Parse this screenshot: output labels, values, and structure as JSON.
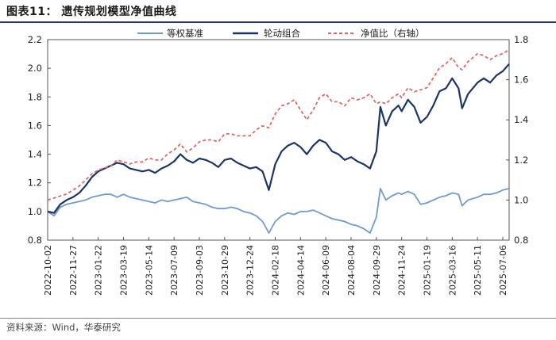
{
  "title": "图表11：   遗传规划模型净值曲线",
  "source": "资料来源：Wind，华泰研究",
  "chart_data": {
    "type": "line",
    "y_left_ticks": [
      "2.2",
      "2.0",
      "1.8",
      "1.6",
      "1.4",
      "1.2",
      "1.0",
      "0.8"
    ],
    "y_right_ticks": [
      "1.8",
      "1.6",
      "1.4",
      "1.2",
      "1.0",
      "0.8"
    ],
    "ylim_left": [
      0.8,
      2.2
    ],
    "ylim_right": [
      0.8,
      1.8
    ],
    "x_ticks": [
      "2022-10-02",
      "2022-11-27",
      "2023-01-22",
      "2023-03-19",
      "2023-05-14",
      "2023-07-09",
      "2023-09-03",
      "2023-10-29",
      "2023-12-24",
      "2024-02-18",
      "2024-04-14",
      "2024-06-09",
      "2024-08-04",
      "2024-09-29",
      "2024-11-24",
      "2025-01-19",
      "2025-03-16",
      "2025-05-11",
      "2025-07-06"
    ],
    "series": [
      {
        "name": "等权基准",
        "axis": "left",
        "color": "#6f9bd1",
        "style": "solid",
        "points": [
          [
            "2022-10-02",
            1.0
          ],
          [
            "2022-10-16",
            0.97
          ],
          [
            "2022-10-30",
            1.03
          ],
          [
            "2022-11-13",
            1.05
          ],
          [
            "2022-11-27",
            1.06
          ],
          [
            "2022-12-11",
            1.07
          ],
          [
            "2022-12-25",
            1.08
          ],
          [
            "2023-01-08",
            1.1
          ],
          [
            "2023-01-22",
            1.11
          ],
          [
            "2023-02-05",
            1.12
          ],
          [
            "2023-02-19",
            1.12
          ],
          [
            "2023-03-05",
            1.1
          ],
          [
            "2023-03-19",
            1.12
          ],
          [
            "2023-04-02",
            1.1
          ],
          [
            "2023-04-16",
            1.09
          ],
          [
            "2023-04-30",
            1.08
          ],
          [
            "2023-05-14",
            1.07
          ],
          [
            "2023-05-28",
            1.06
          ],
          [
            "2023-06-11",
            1.08
          ],
          [
            "2023-06-25",
            1.07
          ],
          [
            "2023-07-09",
            1.08
          ],
          [
            "2023-07-23",
            1.09
          ],
          [
            "2023-08-06",
            1.1
          ],
          [
            "2023-08-20",
            1.07
          ],
          [
            "2023-09-03",
            1.06
          ],
          [
            "2023-09-17",
            1.05
          ],
          [
            "2023-10-01",
            1.03
          ],
          [
            "2023-10-15",
            1.02
          ],
          [
            "2023-10-29",
            1.02
          ],
          [
            "2023-11-12",
            1.03
          ],
          [
            "2023-11-26",
            1.02
          ],
          [
            "2023-12-10",
            1.0
          ],
          [
            "2023-12-24",
            0.99
          ],
          [
            "2024-01-07",
            0.97
          ],
          [
            "2024-01-21",
            0.93
          ],
          [
            "2024-02-04",
            0.85
          ],
          [
            "2024-02-18",
            0.93
          ],
          [
            "2024-03-03",
            0.97
          ],
          [
            "2024-03-17",
            0.99
          ],
          [
            "2024-03-31",
            0.98
          ],
          [
            "2024-04-14",
            1.0
          ],
          [
            "2024-04-28",
            1.0
          ],
          [
            "2024-05-12",
            1.01
          ],
          [
            "2024-05-26",
            0.99
          ],
          [
            "2024-06-09",
            0.97
          ],
          [
            "2024-06-23",
            0.95
          ],
          [
            "2024-07-07",
            0.94
          ],
          [
            "2024-07-21",
            0.93
          ],
          [
            "2024-08-04",
            0.91
          ],
          [
            "2024-08-18",
            0.9
          ],
          [
            "2024-09-01",
            0.88
          ],
          [
            "2024-09-15",
            0.85
          ],
          [
            "2024-09-29",
            0.96
          ],
          [
            "2024-10-08",
            1.16
          ],
          [
            "2024-10-20",
            1.08
          ],
          [
            "2024-11-03",
            1.11
          ],
          [
            "2024-11-17",
            1.13
          ],
          [
            "2024-11-24",
            1.12
          ],
          [
            "2024-12-08",
            1.14
          ],
          [
            "2024-12-22",
            1.12
          ],
          [
            "2025-01-05",
            1.05
          ],
          [
            "2025-01-19",
            1.06
          ],
          [
            "2025-02-02",
            1.08
          ],
          [
            "2025-02-16",
            1.1
          ],
          [
            "2025-03-02",
            1.11
          ],
          [
            "2025-03-16",
            1.13
          ],
          [
            "2025-03-30",
            1.12
          ],
          [
            "2025-04-07",
            1.04
          ],
          [
            "2025-04-20",
            1.08
          ],
          [
            "2025-05-11",
            1.1
          ],
          [
            "2025-05-25",
            1.12
          ],
          [
            "2025-06-08",
            1.12
          ],
          [
            "2025-06-22",
            1.13
          ],
          [
            "2025-07-06",
            1.15
          ],
          [
            "2025-07-20",
            1.16
          ]
        ]
      },
      {
        "name": "轮动组合",
        "axis": "left",
        "color": "#1b3566",
        "style": "solid",
        "points": [
          [
            "2022-10-02",
            1.0
          ],
          [
            "2022-10-16",
            0.99
          ],
          [
            "2022-10-30",
            1.05
          ],
          [
            "2022-11-13",
            1.08
          ],
          [
            "2022-11-27",
            1.1
          ],
          [
            "2022-12-11",
            1.13
          ],
          [
            "2022-12-25",
            1.18
          ],
          [
            "2023-01-08",
            1.24
          ],
          [
            "2023-01-22",
            1.28
          ],
          [
            "2023-02-05",
            1.3
          ],
          [
            "2023-02-19",
            1.32
          ],
          [
            "2023-03-05",
            1.34
          ],
          [
            "2023-03-19",
            1.33
          ],
          [
            "2023-04-02",
            1.3
          ],
          [
            "2023-04-16",
            1.29
          ],
          [
            "2023-04-30",
            1.28
          ],
          [
            "2023-05-14",
            1.29
          ],
          [
            "2023-05-28",
            1.27
          ],
          [
            "2023-06-11",
            1.3
          ],
          [
            "2023-06-25",
            1.32
          ],
          [
            "2023-07-09",
            1.35
          ],
          [
            "2023-07-23",
            1.4
          ],
          [
            "2023-08-06",
            1.36
          ],
          [
            "2023-08-20",
            1.34
          ],
          [
            "2023-09-03",
            1.37
          ],
          [
            "2023-09-17",
            1.36
          ],
          [
            "2023-10-01",
            1.34
          ],
          [
            "2023-10-15",
            1.31
          ],
          [
            "2023-10-29",
            1.36
          ],
          [
            "2023-11-12",
            1.37
          ],
          [
            "2023-11-26",
            1.34
          ],
          [
            "2023-12-10",
            1.32
          ],
          [
            "2023-12-24",
            1.3
          ],
          [
            "2024-01-07",
            1.31
          ],
          [
            "2024-01-21",
            1.28
          ],
          [
            "2024-02-04",
            1.15
          ],
          [
            "2024-02-18",
            1.33
          ],
          [
            "2024-03-03",
            1.42
          ],
          [
            "2024-03-17",
            1.46
          ],
          [
            "2024-03-31",
            1.48
          ],
          [
            "2024-04-14",
            1.45
          ],
          [
            "2024-04-28",
            1.4
          ],
          [
            "2024-05-12",
            1.46
          ],
          [
            "2024-05-26",
            1.5
          ],
          [
            "2024-06-09",
            1.48
          ],
          [
            "2024-06-23",
            1.42
          ],
          [
            "2024-07-07",
            1.4
          ],
          [
            "2024-07-21",
            1.36
          ],
          [
            "2024-08-04",
            1.38
          ],
          [
            "2024-08-18",
            1.35
          ],
          [
            "2024-09-01",
            1.33
          ],
          [
            "2024-09-15",
            1.3
          ],
          [
            "2024-09-29",
            1.42
          ],
          [
            "2024-10-08",
            1.73
          ],
          [
            "2024-10-20",
            1.6
          ],
          [
            "2024-11-03",
            1.7
          ],
          [
            "2024-11-17",
            1.74
          ],
          [
            "2024-11-24",
            1.7
          ],
          [
            "2024-12-08",
            1.78
          ],
          [
            "2024-12-22",
            1.73
          ],
          [
            "2025-01-05",
            1.62
          ],
          [
            "2025-01-19",
            1.66
          ],
          [
            "2025-02-02",
            1.74
          ],
          [
            "2025-02-16",
            1.84
          ],
          [
            "2025-03-02",
            1.86
          ],
          [
            "2025-03-16",
            1.93
          ],
          [
            "2025-03-30",
            1.86
          ],
          [
            "2025-04-07",
            1.72
          ],
          [
            "2025-04-20",
            1.82
          ],
          [
            "2025-05-11",
            1.9
          ],
          [
            "2025-05-25",
            1.93
          ],
          [
            "2025-06-08",
            1.9
          ],
          [
            "2025-06-22",
            1.95
          ],
          [
            "2025-07-06",
            1.98
          ],
          [
            "2025-07-20",
            2.03
          ]
        ]
      },
      {
        "name": "净值比（右轴）",
        "axis": "right",
        "color": "#e06767",
        "style": "dashed",
        "points": [
          [
            "2022-10-02",
            1.0
          ],
          [
            "2022-10-16",
            1.01
          ],
          [
            "2022-10-30",
            1.02
          ],
          [
            "2022-11-13",
            1.03
          ],
          [
            "2022-11-27",
            1.05
          ],
          [
            "2022-12-11",
            1.07
          ],
          [
            "2022-12-25",
            1.1
          ],
          [
            "2023-01-08",
            1.13
          ],
          [
            "2023-01-22",
            1.15
          ],
          [
            "2023-02-05",
            1.16
          ],
          [
            "2023-02-19",
            1.17
          ],
          [
            "2023-03-05",
            1.2
          ],
          [
            "2023-03-19",
            1.19
          ],
          [
            "2023-04-02",
            1.18
          ],
          [
            "2023-04-16",
            1.19
          ],
          [
            "2023-04-30",
            1.19
          ],
          [
            "2023-05-14",
            1.21
          ],
          [
            "2023-05-28",
            1.2
          ],
          [
            "2023-06-11",
            1.2
          ],
          [
            "2023-06-25",
            1.23
          ],
          [
            "2023-07-09",
            1.25
          ],
          [
            "2023-07-23",
            1.28
          ],
          [
            "2023-08-06",
            1.24
          ],
          [
            "2023-08-20",
            1.26
          ],
          [
            "2023-09-03",
            1.29
          ],
          [
            "2023-09-17",
            1.3
          ],
          [
            "2023-10-01",
            1.3
          ],
          [
            "2023-10-15",
            1.29
          ],
          [
            "2023-10-29",
            1.33
          ],
          [
            "2023-11-12",
            1.33
          ],
          [
            "2023-11-26",
            1.32
          ],
          [
            "2023-12-10",
            1.32
          ],
          [
            "2023-12-24",
            1.32
          ],
          [
            "2024-01-07",
            1.35
          ],
          [
            "2024-01-21",
            1.37
          ],
          [
            "2024-02-04",
            1.36
          ],
          [
            "2024-02-18",
            1.43
          ],
          [
            "2024-03-03",
            1.47
          ],
          [
            "2024-03-17",
            1.48
          ],
          [
            "2024-03-31",
            1.5
          ],
          [
            "2024-04-14",
            1.45
          ],
          [
            "2024-04-28",
            1.4
          ],
          [
            "2024-05-12",
            1.45
          ],
          [
            "2024-05-26",
            1.51
          ],
          [
            "2024-06-09",
            1.53
          ],
          [
            "2024-06-23",
            1.49
          ],
          [
            "2024-07-07",
            1.49
          ],
          [
            "2024-07-21",
            1.47
          ],
          [
            "2024-08-04",
            1.51
          ],
          [
            "2024-08-18",
            1.5
          ],
          [
            "2024-09-01",
            1.51
          ],
          [
            "2024-09-15",
            1.53
          ],
          [
            "2024-09-29",
            1.48
          ],
          [
            "2024-10-08",
            1.49
          ],
          [
            "2024-10-20",
            1.48
          ],
          [
            "2024-11-03",
            1.51
          ],
          [
            "2024-11-17",
            1.53
          ],
          [
            "2024-11-24",
            1.51
          ],
          [
            "2024-12-08",
            1.56
          ],
          [
            "2024-12-22",
            1.54
          ],
          [
            "2025-01-05",
            1.55
          ],
          [
            "2025-01-19",
            1.56
          ],
          [
            "2025-02-02",
            1.61
          ],
          [
            "2025-02-16",
            1.66
          ],
          [
            "2025-03-02",
            1.68
          ],
          [
            "2025-03-16",
            1.71
          ],
          [
            "2025-03-30",
            1.66
          ],
          [
            "2025-04-07",
            1.65
          ],
          [
            "2025-04-20",
            1.69
          ],
          [
            "2025-05-11",
            1.73
          ],
          [
            "2025-05-25",
            1.72
          ],
          [
            "2025-06-08",
            1.7
          ],
          [
            "2025-06-22",
            1.72
          ],
          [
            "2025-07-06",
            1.73
          ],
          [
            "2025-07-20",
            1.75
          ]
        ]
      }
    ],
    "legend_position": "top"
  }
}
